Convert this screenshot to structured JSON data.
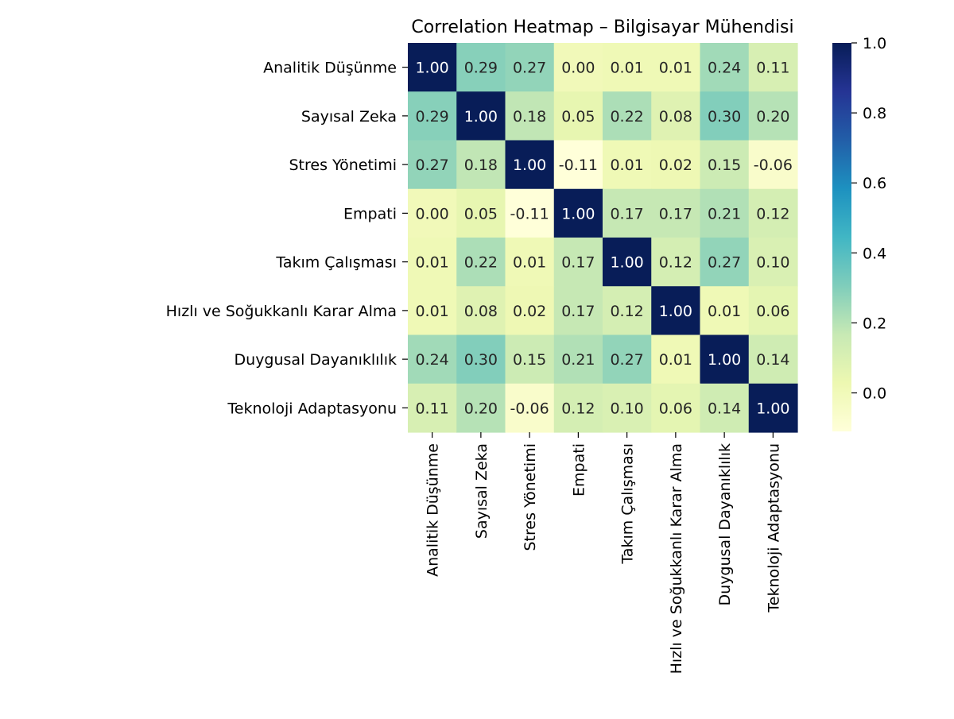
{
  "chart_data": {
    "type": "heatmap",
    "title": "Correlation Heatmap – Bilgisayar Mühendisi",
    "labels": [
      "Analitik Düşünme",
      "Sayısal Zeka",
      "Stres Yönetimi",
      "Empati",
      "Takım Çalışması",
      "Hızlı ve Soğukkanlı Karar Alma",
      "Duygusal Dayanıklılık",
      "Teknoloji Adaptasyonu"
    ],
    "matrix": [
      [
        1.0,
        0.29,
        0.27,
        0.0,
        0.01,
        0.01,
        0.24,
        0.11
      ],
      [
        0.29,
        1.0,
        0.18,
        0.05,
        0.22,
        0.08,
        0.3,
        0.2
      ],
      [
        0.27,
        0.18,
        1.0,
        -0.11,
        0.01,
        0.02,
        0.15,
        -0.06
      ],
      [
        0.0,
        0.05,
        -0.11,
        1.0,
        0.17,
        0.17,
        0.21,
        0.12
      ],
      [
        0.01,
        0.22,
        0.01,
        0.17,
        1.0,
        0.12,
        0.27,
        0.1
      ],
      [
        0.01,
        0.08,
        0.02,
        0.17,
        0.12,
        1.0,
        0.01,
        0.06
      ],
      [
        0.24,
        0.3,
        0.15,
        0.21,
        0.27,
        0.01,
        1.0,
        0.14
      ],
      [
        0.11,
        0.2,
        -0.06,
        0.12,
        0.1,
        0.06,
        0.14,
        1.0
      ]
    ],
    "value_format": "2 decimals",
    "colormap": "YlGnBu",
    "colormap_stops": [
      "#ffffd9",
      "#edf8b1",
      "#c7e9b4",
      "#7fcdbb",
      "#41b6c4",
      "#1d91c0",
      "#225ea8",
      "#253494",
      "#081d58"
    ],
    "vmin": -0.11,
    "vmax": 1.0,
    "colorbar": {
      "ticks": [
        0.0,
        0.2,
        0.4,
        0.6,
        0.8,
        1.0
      ],
      "tick_labels": [
        "0.0",
        "0.2",
        "0.4",
        "0.6",
        "0.8",
        "1.0"
      ],
      "placement": "right"
    },
    "grid": false,
    "annot_dark_text_color": "#262626",
    "annot_light_text_color": "#ffffff"
  }
}
